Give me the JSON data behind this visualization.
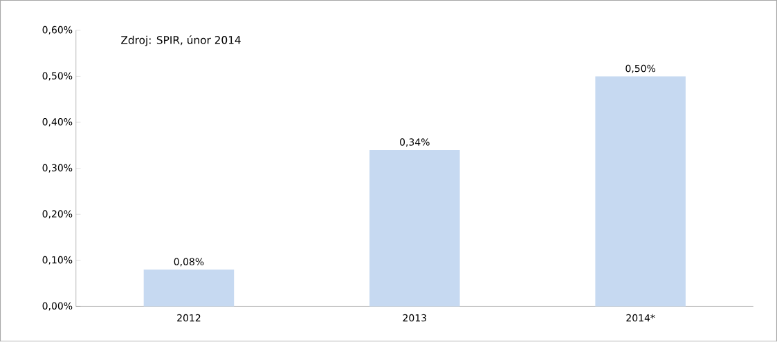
{
  "chart_data": {
    "type": "bar",
    "categories": [
      "2012",
      "2013",
      "2014*"
    ],
    "values": [
      0.08,
      0.34,
      0.5
    ],
    "value_labels": [
      "0,08%",
      "0,34%",
      "0,50%"
    ],
    "color": "#c6d9f1",
    "ylim": [
      0,
      0.6
    ],
    "yticks": [
      {
        "value": 0,
        "label": "0,00%"
      },
      {
        "value": 0.1,
        "label": "0,10%"
      },
      {
        "value": 0.2,
        "label": "0,20%"
      },
      {
        "value": 0.3,
        "label": "0,30%"
      },
      {
        "value": 0.4,
        "label": "0,40%"
      },
      {
        "value": 0.5,
        "label": "0,50%"
      },
      {
        "value": 0.6,
        "label": "0,60%"
      }
    ],
    "annotations": [
      "Zdroj: SPIR, únor 2014"
    ]
  }
}
